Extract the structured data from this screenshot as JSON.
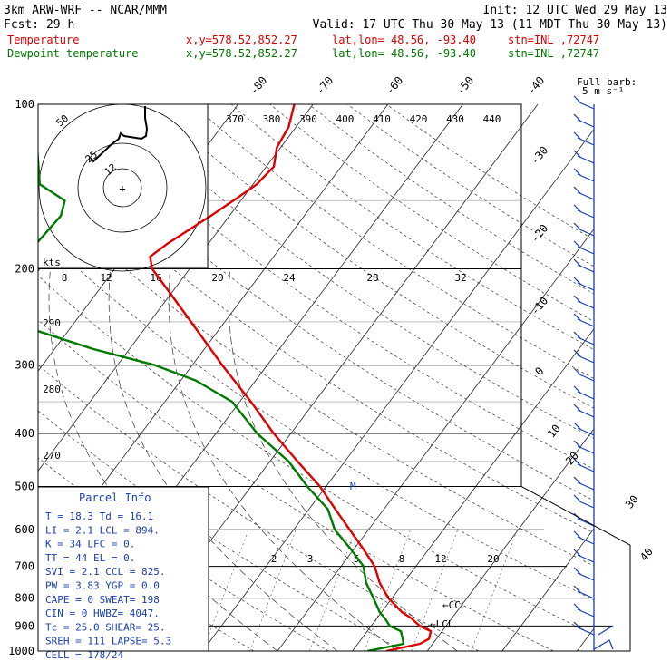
{
  "header": {
    "model": "3km ARW-WRF -- NCAR/MMM",
    "init": "Init: 12 UTC Wed 29 May 13",
    "fcst": "Fcst:   29 h",
    "valid": "Valid: 17 UTC Thu 30 May 13 (11 MDT Thu 30 May 13)"
  },
  "legend": [
    {
      "name": "Temperature",
      "xy": "x,y=578.52,852.27",
      "latlon": "lat,lon= 48.56, -93.40",
      "stn": "stn=INL ,72747",
      "color": "#e00000"
    },
    {
      "name": "Dewpoint temperature",
      "xy": "x,y=578.52,852.27",
      "latlon": "lat,lon= 48.56, -93.40",
      "stn": "stn=INL ,72747",
      "color": "#007a00"
    }
  ],
  "barb_key": {
    "line1": "Full barb:",
    "line2": "5 m s⁻¹"
  },
  "parcel_info": {
    "title": "Parcel Info",
    "rows": [
      "T  =   18.3  Td =  16.1",
      "LI =    2.1  LCL =  894.",
      "K  =     34  LFC =     0.",
      "TT =     44  EL  =     0.",
      "SVI =   2.1  CCL =  825.",
      "PW =   3.83  YGP =   0.0",
      "CAPE =    0  SWEAT=   198",
      "CIN =     0  HWBZ= 4047.",
      "Tc =   25.0  SHEAR=   25.",
      "SREH =  111  LAPSE=   5.3",
      "CELL = 178/24"
    ]
  },
  "hodograph": {
    "ring_labels": [
      "50",
      "25",
      "12"
    ],
    "center_mark": "+"
  },
  "markers": {
    "lcl": "←LCL",
    "ccl": "←CCL",
    "m": "M"
  },
  "inset_axis_label": "kts",
  "mixing_ratio_labels": [
    "2",
    "3",
    "5",
    "8",
    "12",
    "20"
  ],
  "theta_e_labels": [
    "370",
    "380",
    "390",
    "400",
    "410",
    "420",
    "430",
    "440"
  ],
  "theta_labels": [
    "290",
    "280",
    "270"
  ],
  "hodo_speed_ticks": [
    "8",
    "12",
    "16",
    "20",
    "24",
    "28",
    "32"
  ],
  "chart_data": {
    "type": "line",
    "title": "Skew-T / log-P sounding",
    "ylabel": "",
    "xlabel": "",
    "y_scale": "log",
    "ylim": [
      1000,
      100
    ],
    "pressure_ticks": [
      100,
      200,
      300,
      400,
      500,
      600,
      700,
      800,
      900,
      1000
    ],
    "isotherm_labels": [
      -80,
      -70,
      -60,
      -50,
      -40,
      -30,
      -20,
      -10,
      0,
      10,
      20,
      30,
      40
    ],
    "series": [
      {
        "name": "Temperature",
        "color": "#e00000",
        "points": [
          [
            1000,
            14.5
          ],
          [
            970,
            18.3
          ],
          [
            950,
            19.0
          ],
          [
            920,
            18.5
          ],
          [
            900,
            16.5
          ],
          [
            870,
            14.5
          ],
          [
            850,
            12.8
          ],
          [
            800,
            9.5
          ],
          [
            750,
            6.8
          ],
          [
            700,
            4.5
          ],
          [
            650,
            1.2
          ],
          [
            600,
            -2.5
          ],
          [
            550,
            -6.5
          ],
          [
            500,
            -10.8
          ],
          [
            450,
            -16.3
          ],
          [
            400,
            -22.3
          ],
          [
            350,
            -28.5
          ],
          [
            300,
            -36.0
          ],
          [
            250,
            -44.5
          ],
          [
            220,
            -50.5
          ],
          [
            200,
            -55.0
          ],
          [
            190,
            -56.5
          ],
          [
            180,
            -55.5
          ],
          [
            160,
            -52.5
          ],
          [
            150,
            -51.0
          ],
          [
            140,
            -49.5
          ],
          [
            130,
            -49.0
          ],
          [
            120,
            -50.5
          ],
          [
            110,
            -51.0
          ],
          [
            100,
            -52.5
          ]
        ]
      },
      {
        "name": "Dewpoint temperature",
        "color": "#007a00",
        "points": [
          [
            1000,
            12.0
          ],
          [
            970,
            16.1
          ],
          [
            950,
            15.5
          ],
          [
            920,
            14.5
          ],
          [
            900,
            12.5
          ],
          [
            870,
            11.0
          ],
          [
            850,
            9.8
          ],
          [
            800,
            7.5
          ],
          [
            750,
            5.0
          ],
          [
            700,
            3.0
          ],
          [
            650,
            -0.5
          ],
          [
            600,
            -4.5
          ],
          [
            550,
            -7.5
          ],
          [
            500,
            -12.5
          ],
          [
            450,
            -17.5
          ],
          [
            400,
            -24.5
          ],
          [
            350,
            -31.0
          ],
          [
            320,
            -38.0
          ],
          [
            300,
            -45.0
          ],
          [
            280,
            -55.0
          ],
          [
            260,
            -64.0
          ],
          [
            250,
            -67.0
          ],
          [
            220,
            -70.0
          ],
          [
            200,
            -73.5
          ],
          [
            180,
            -73.0
          ],
          [
            160,
            -72.5
          ],
          [
            150,
            -73.5
          ],
          [
            140,
            -78.5
          ],
          [
            120,
            -82.5
          ],
          [
            110,
            -85.0
          ],
          [
            100,
            -87.0
          ]
        ]
      }
    ],
    "wind_barb_labels": [
      "30",
      "40"
    ]
  }
}
